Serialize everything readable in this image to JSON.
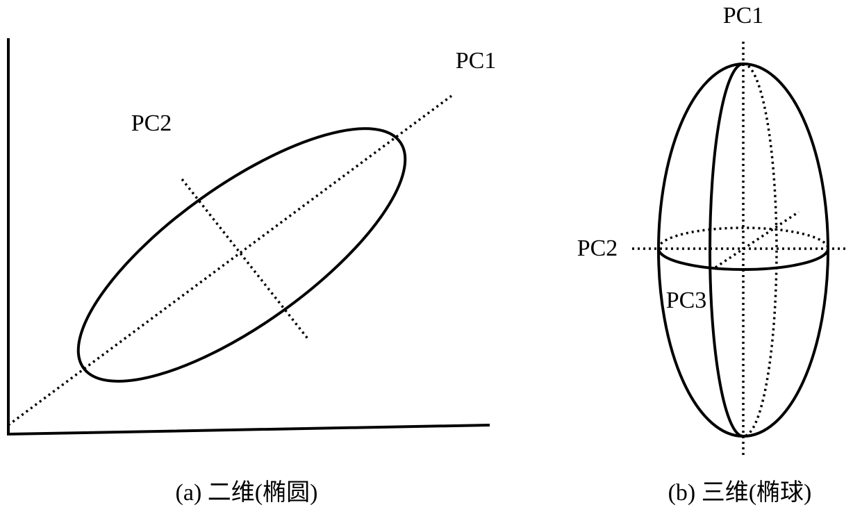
{
  "panels": [
    {
      "labels": [
        "PC1",
        "PC2"
      ],
      "caption": "(a) 二维(椭圆)"
    },
    {
      "labels": [
        "PC1",
        "PC2",
        "PC3"
      ],
      "caption": "(b) 三维(椭球)"
    }
  ]
}
